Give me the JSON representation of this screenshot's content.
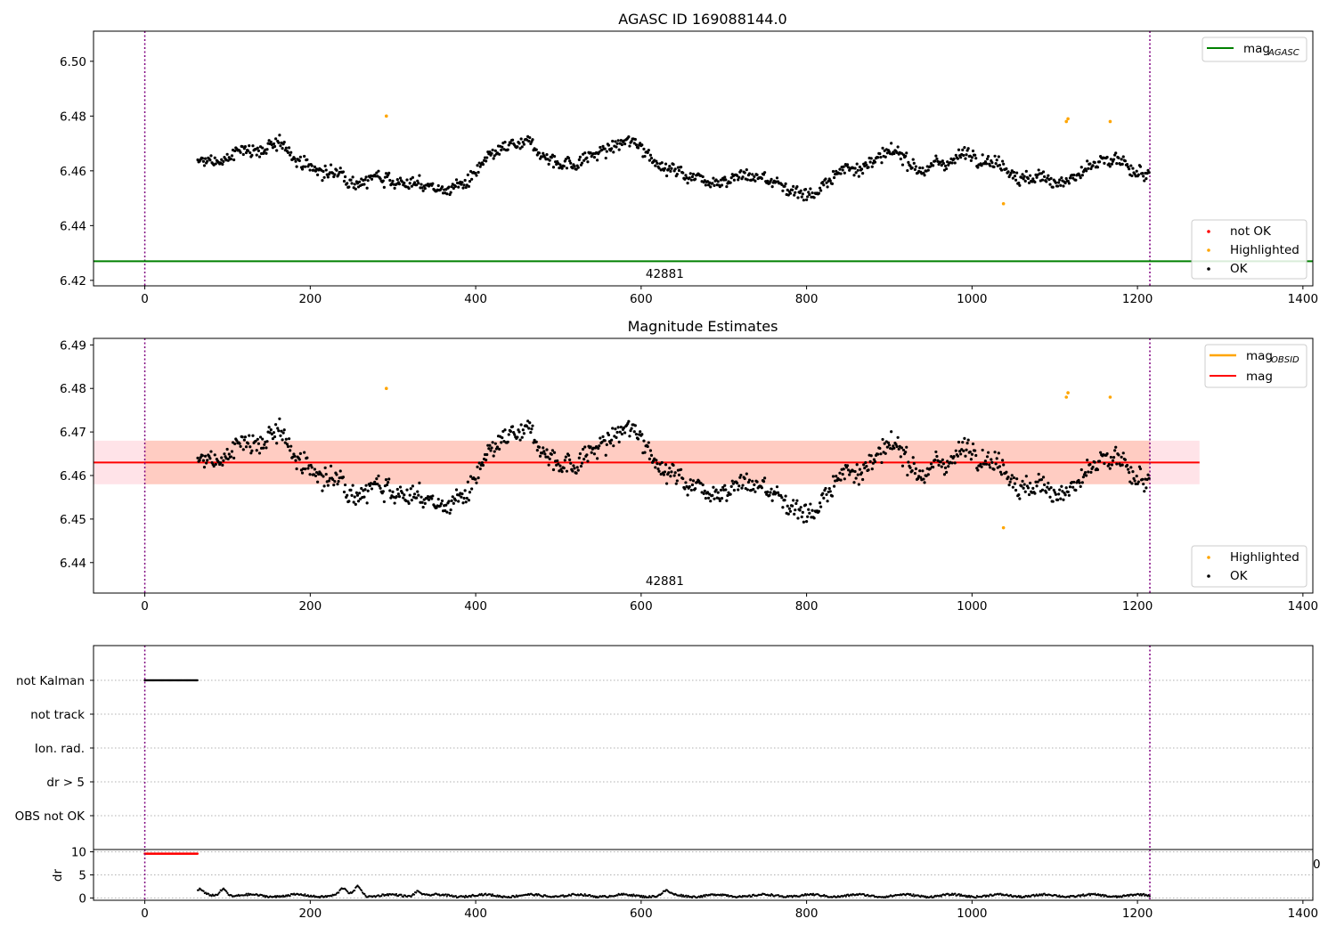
{
  "chart_data": [
    {
      "type": "scatter",
      "title": "AGASC ID 169088144.0",
      "xlim": [
        -62,
        1412
      ],
      "ylim": [
        6.418,
        6.511
      ],
      "x_ticks": [
        0,
        200,
        400,
        600,
        800,
        1000,
        1200,
        1400
      ],
      "x_tick_labels": [
        "0",
        "200",
        "400",
        "600",
        "800",
        "1000",
        "1200",
        "1400"
      ],
      "y_ticks": [
        6.42,
        6.44,
        6.46,
        6.48,
        6.5
      ],
      "y_tick_labels": [
        "6.42",
        "6.44",
        "6.46",
        "6.48",
        "6.50"
      ],
      "obs_boundaries_x": [
        0,
        1215
      ],
      "obsid_label": {
        "text": "42881",
        "x": 607
      },
      "reference_line": {
        "name": "mag",
        "subscript": "AGASC",
        "value": 6.427,
        "color": "#008000"
      },
      "data_x_range": [
        64,
        1215
      ],
      "baseline_mag": 6.463,
      "highlighted_points": [
        {
          "x": 292,
          "y": 6.48
        },
        {
          "x": 1038,
          "y": 6.448
        },
        {
          "x": 1114,
          "y": 6.478
        },
        {
          "x": 1116,
          "y": 6.479
        },
        {
          "x": 1167,
          "y": 6.478
        }
      ],
      "legend_lines": [
        {
          "label": "mag",
          "subscript": "AGASC",
          "color": "#008000"
        }
      ],
      "legend_points": [
        {
          "label": "not OK",
          "color": "#ff0000"
        },
        {
          "label": "Highlighted",
          "color": "#ffa500"
        },
        {
          "label": "OK",
          "color": "#000000"
        }
      ],
      "legend_position": [
        "upper right",
        "lower right"
      ]
    },
    {
      "type": "scatter",
      "title": "Magnitude Estimates",
      "xlim": [
        -62,
        1412
      ],
      "ylim": [
        6.433,
        6.4915
      ],
      "x_ticks": [
        0,
        200,
        400,
        600,
        800,
        1000,
        1200,
        1400
      ],
      "x_tick_labels": [
        "0",
        "200",
        "400",
        "600",
        "800",
        "1000",
        "1200",
        "1400"
      ],
      "y_ticks": [
        6.44,
        6.45,
        6.46,
        6.47,
        6.48,
        6.49
      ],
      "y_tick_labels": [
        "6.44",
        "6.45",
        "6.46",
        "6.47",
        "6.48",
        "6.49"
      ],
      "obs_boundaries_x": [
        0,
        1215
      ],
      "obsid_label": {
        "text": "42881",
        "x": 607
      },
      "mag_line": {
        "name": "mag",
        "value": 6.463,
        "color": "#ff0000",
        "x_range": [
          -62,
          1275
        ]
      },
      "mag_band": {
        "low": 6.458,
        "high": 6.468,
        "color": "#ffc0cb",
        "x_range": [
          -62,
          1275
        ]
      },
      "mag_obsid_line": {
        "name": "mag",
        "subscript": "OBSID",
        "value": 6.463,
        "color": "#ffa500",
        "x_range": [
          0,
          1215
        ]
      },
      "mag_obsid_band": {
        "low": 6.458,
        "high": 6.468,
        "color": "#ffa07a",
        "x_range": [
          0,
          1215
        ]
      },
      "highlighted_points": [
        {
          "x": 292,
          "y": 6.48
        },
        {
          "x": 1038,
          "y": 6.448
        },
        {
          "x": 1114,
          "y": 6.478
        },
        {
          "x": 1116,
          "y": 6.479
        },
        {
          "x": 1167,
          "y": 6.478
        }
      ],
      "legend_lines": [
        {
          "label": "mag",
          "subscript": "OBSID",
          "color": "#ffa500"
        },
        {
          "label": "mag",
          "color": "#ff0000"
        }
      ],
      "legend_points": [
        {
          "label": "Highlighted",
          "color": "#ffa500"
        },
        {
          "label": "OK",
          "color": "#000000"
        }
      ],
      "legend_position": [
        "upper right",
        "lower right"
      ]
    },
    {
      "type": "scatter",
      "title": "",
      "categories": [
        "not Kalman",
        "not track",
        "Ion. rad.",
        "dr > 5",
        "OBS not OK"
      ],
      "xlim": [
        -62,
        1412
      ],
      "flags": [
        {
          "category": "not Kalman",
          "x_range": [
            0,
            64
          ]
        }
      ],
      "obs_boundaries_x": [
        0,
        1215
      ]
    },
    {
      "type": "line",
      "ylabel": "dr",
      "xlim": [
        -62,
        1412
      ],
      "ylim": [
        -0.5,
        10.5
      ],
      "y_ticks": [
        0,
        5,
        10
      ],
      "y_tick_labels": [
        "0",
        "5",
        "10"
      ],
      "x_ticks": [
        0,
        200,
        400,
        600,
        800,
        1000,
        1200,
        1400
      ],
      "x_tick_labels": [
        "0",
        "200",
        "400",
        "600",
        "800",
        "1000",
        "1200",
        "1400"
      ],
      "red_segment": {
        "x_range": [
          0,
          64
        ],
        "value": 9.6,
        "color": "#ff0000"
      },
      "black_series_x_range": [
        64,
        1215
      ],
      "black_series_typical": 0.5,
      "black_series_peaks": [
        {
          "x": 66,
          "y": 1.2
        },
        {
          "x": 95,
          "y": 1.6
        },
        {
          "x": 240,
          "y": 1.4
        },
        {
          "x": 258,
          "y": 2.1
        },
        {
          "x": 330,
          "y": 1.1
        },
        {
          "x": 630,
          "y": 0.9
        }
      ],
      "obs_boundaries_x": [
        0,
        1215
      ],
      "clipped_tick_fragment": "0"
    }
  ]
}
